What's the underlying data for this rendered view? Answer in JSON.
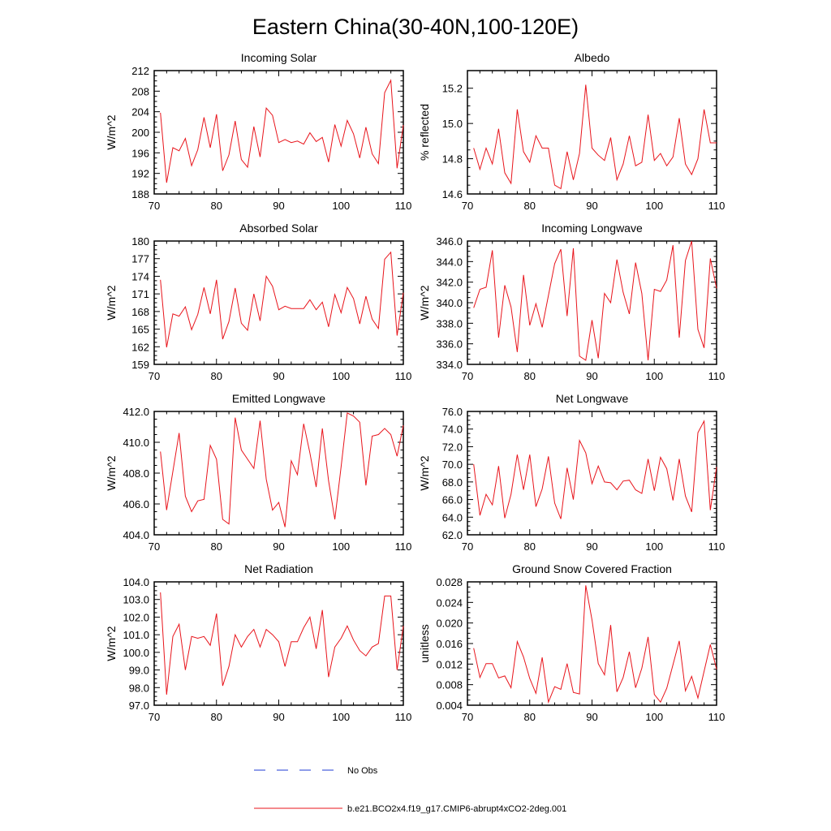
{
  "figure_title": "Eastern China(30-40N,100-120E)",
  "legend": {
    "obs_label": "No Obs",
    "model_label": "b.e21.BCO2x4.f19_g17.CMIP6-abrupt4xCO2-2deg.001",
    "obs_color": "#1f3bd6",
    "model_color": "#e8141b"
  },
  "chart_data": [
    {
      "type": "line",
      "title": "Incoming Solar",
      "ylabel": "W/m^2",
      "xlim": [
        70,
        110
      ],
      "ylim": [
        188,
        212
      ],
      "yticks": [
        "188",
        "192",
        "196",
        "200",
        "204",
        "208",
        "212"
      ],
      "xticks": [
        "70",
        "80",
        "90",
        "100",
        "110"
      ],
      "x": [
        71,
        72,
        73,
        74,
        75,
        76,
        77,
        78,
        79,
        80,
        81,
        82,
        83,
        84,
        85,
        86,
        87,
        88,
        89,
        90,
        91,
        92,
        93,
        94,
        95,
        96,
        97,
        98,
        99,
        100,
        101,
        102,
        103,
        104,
        105,
        106,
        107,
        108,
        109,
        110
      ],
      "values": [
        203.8,
        190.2,
        197.0,
        196.4,
        198.8,
        193.5,
        196.6,
        202.9,
        197.0,
        203.5,
        192.5,
        195.6,
        202.2,
        194.7,
        193.2,
        201.1,
        195.2,
        204.7,
        203.3,
        198.0,
        198.6,
        198.0,
        198.3,
        197.7,
        199.9,
        198.2,
        199.0,
        194.2,
        201.5,
        197.3,
        202.3,
        199.7,
        195.0,
        201.0,
        195.8,
        193.9,
        207.7,
        210.1,
        193.0,
        201.4
      ],
      "series_color": "#e8141b"
    },
    {
      "type": "line",
      "title": "Albedo",
      "ylabel": "% reflected",
      "xlim": [
        70,
        110
      ],
      "ylim": [
        14.6,
        15.3
      ],
      "yticks": [
        "14.6",
        "14.8",
        "15.0",
        "15.2"
      ],
      "xticks": [
        "70",
        "80",
        "90",
        "100",
        "110"
      ],
      "x": [
        71,
        72,
        73,
        74,
        75,
        76,
        77,
        78,
        79,
        80,
        81,
        82,
        83,
        84,
        85,
        86,
        87,
        88,
        89,
        90,
        91,
        92,
        93,
        94,
        95,
        96,
        97,
        98,
        99,
        100,
        101,
        102,
        103,
        104,
        105,
        106,
        107,
        108,
        109,
        110
      ],
      "values": [
        14.86,
        14.74,
        14.86,
        14.77,
        14.97,
        14.72,
        14.66,
        15.08,
        14.84,
        14.78,
        14.93,
        14.86,
        14.86,
        14.65,
        14.63,
        14.84,
        14.68,
        14.83,
        15.22,
        14.86,
        14.82,
        14.79,
        14.92,
        14.68,
        14.77,
        14.93,
        14.76,
        14.78,
        15.05,
        14.79,
        14.83,
        14.76,
        14.81,
        15.03,
        14.77,
        14.71,
        14.8,
        15.08,
        14.89,
        14.89
      ],
      "series_color": "#e8141b"
    },
    {
      "type": "line",
      "title": "Absorbed Solar",
      "ylabel": "W/m^2",
      "xlim": [
        70,
        110
      ],
      "ylim": [
        159,
        180
      ],
      "yticks": [
        "159",
        "162",
        "165",
        "168",
        "171",
        "174",
        "177",
        "180"
      ],
      "xticks": [
        "70",
        "80",
        "90",
        "100",
        "110"
      ],
      "x": [
        71,
        72,
        73,
        74,
        75,
        76,
        77,
        78,
        79,
        80,
        81,
        82,
        83,
        84,
        85,
        86,
        87,
        88,
        89,
        90,
        91,
        92,
        93,
        94,
        95,
        96,
        97,
        98,
        99,
        100,
        101,
        102,
        103,
        104,
        105,
        106,
        107,
        108,
        109,
        110
      ],
      "values": [
        173.4,
        161.9,
        167.6,
        167.2,
        168.8,
        164.9,
        167.5,
        172.1,
        167.6,
        173.4,
        163.3,
        166.3,
        172.0,
        166.0,
        164.8,
        171.0,
        166.4,
        174.0,
        172.3,
        168.3,
        168.9,
        168.5,
        168.5,
        168.5,
        170.0,
        168.3,
        169.6,
        165.4,
        170.9,
        167.8,
        172.1,
        170.2,
        165.9,
        170.6,
        166.7,
        165.1,
        176.9,
        178.1,
        163.9,
        171.2
      ],
      "series_color": "#e8141b"
    },
    {
      "type": "line",
      "title": "Incoming Longwave",
      "ylabel": "W/m^2",
      "xlim": [
        70,
        110
      ],
      "ylim": [
        334.0,
        346.0
      ],
      "yticks": [
        "334.0",
        "336.0",
        "338.0",
        "340.0",
        "342.0",
        "344.0",
        "346.0"
      ],
      "xticks": [
        "70",
        "80",
        "90",
        "100",
        "110"
      ],
      "x": [
        71,
        72,
        73,
        74,
        75,
        76,
        77,
        78,
        79,
        80,
        81,
        82,
        83,
        84,
        85,
        86,
        87,
        88,
        89,
        90,
        91,
        92,
        93,
        94,
        95,
        96,
        97,
        98,
        99,
        100,
        101,
        102,
        103,
        104,
        105,
        106,
        107,
        108,
        109,
        110
      ],
      "values": [
        339.5,
        341.3,
        341.5,
        345.1,
        336.6,
        341.7,
        339.6,
        335.2,
        342.7,
        337.8,
        339.9,
        337.6,
        340.7,
        343.8,
        345.2,
        338.7,
        345.3,
        334.8,
        334.4,
        338.3,
        334.6,
        340.9,
        340.0,
        344.2,
        341.0,
        338.9,
        343.9,
        340.9,
        334.4,
        341.3,
        341.1,
        342.2,
        345.6,
        336.6,
        344.1,
        346.0,
        337.4,
        335.6,
        344.3,
        341.4
      ],
      "series_color": "#e8141b"
    },
    {
      "type": "line",
      "title": "Emitted Longwave",
      "ylabel": "W/m^2",
      "xlim": [
        70,
        110
      ],
      "ylim": [
        404.0,
        412.0
      ],
      "yticks": [
        "404.0",
        "406.0",
        "408.0",
        "410.0",
        "412.0"
      ],
      "xticks": [
        "70",
        "80",
        "90",
        "100",
        "110"
      ],
      "x": [
        71,
        72,
        73,
        74,
        75,
        76,
        77,
        78,
        79,
        80,
        81,
        82,
        83,
        84,
        85,
        86,
        87,
        88,
        89,
        90,
        91,
        92,
        93,
        94,
        95,
        96,
        97,
        98,
        99,
        100,
        101,
        102,
        103,
        104,
        105,
        106,
        107,
        108,
        109,
        110
      ],
      "values": [
        409.4,
        405.6,
        408.1,
        410.6,
        406.5,
        405.5,
        406.2,
        406.3,
        409.8,
        408.9,
        405.0,
        404.7,
        411.6,
        409.5,
        408.9,
        408.3,
        411.4,
        407.6,
        405.6,
        406.1,
        404.5,
        408.8,
        407.9,
        411.2,
        409.3,
        407.1,
        410.9,
        407.5,
        405.0,
        408.4,
        411.9,
        411.7,
        411.3,
        407.2,
        410.4,
        410.5,
        410.9,
        410.5,
        409.1,
        411.1
      ],
      "series_color": "#e8141b"
    },
    {
      "type": "line",
      "title": "Net Longwave",
      "ylabel": "W/m^2",
      "xlim": [
        70,
        110
      ],
      "ylim": [
        62.0,
        76.0
      ],
      "yticks": [
        "62.0",
        "64.0",
        "66.0",
        "68.0",
        "70.0",
        "72.0",
        "74.0",
        "76.0"
      ],
      "xticks": [
        "70",
        "80",
        "90",
        "100",
        "110"
      ],
      "x": [
        71,
        72,
        73,
        74,
        75,
        76,
        77,
        78,
        79,
        80,
        81,
        82,
        83,
        84,
        85,
        86,
        87,
        88,
        89,
        90,
        91,
        92,
        93,
        94,
        95,
        96,
        97,
        98,
        99,
        100,
        101,
        102,
        103,
        104,
        105,
        106,
        107,
        108,
        109,
        110
      ],
      "values": [
        70.0,
        64.2,
        66.6,
        65.4,
        69.8,
        63.9,
        66.6,
        71.1,
        67.1,
        71.1,
        65.2,
        67.2,
        70.9,
        65.6,
        63.8,
        69.6,
        66.0,
        72.7,
        71.3,
        67.8,
        69.8,
        68.0,
        67.9,
        67.1,
        68.1,
        68.2,
        67.1,
        66.7,
        70.6,
        67.0,
        70.8,
        69.5,
        65.9,
        70.6,
        66.4,
        64.6,
        73.6,
        74.9,
        64.8,
        69.7
      ],
      "series_color": "#e8141b"
    },
    {
      "type": "line",
      "title": "Net Radiation",
      "ylabel": "W/m^2",
      "xlim": [
        70,
        110
      ],
      "ylim": [
        97.0,
        104.0
      ],
      "yticks": [
        "97.0",
        "98.0",
        "99.0",
        "100.0",
        "101.0",
        "102.0",
        "103.0",
        "104.0"
      ],
      "xticks": [
        "70",
        "80",
        "90",
        "100",
        "110"
      ],
      "x": [
        71,
        72,
        73,
        74,
        75,
        76,
        77,
        78,
        79,
        80,
        81,
        82,
        83,
        84,
        85,
        86,
        87,
        88,
        89,
        90,
        91,
        92,
        93,
        94,
        95,
        96,
        97,
        98,
        99,
        100,
        101,
        102,
        103,
        104,
        105,
        106,
        107,
        108,
        109,
        110
      ],
      "values": [
        103.4,
        97.6,
        100.9,
        101.6,
        99.0,
        100.9,
        100.8,
        100.9,
        100.4,
        102.2,
        98.1,
        99.2,
        101.0,
        100.3,
        100.9,
        101.3,
        100.3,
        101.3,
        101.0,
        100.6,
        99.2,
        100.6,
        100.6,
        101.4,
        102.0,
        100.2,
        102.4,
        98.6,
        100.3,
        100.8,
        101.5,
        100.7,
        100.1,
        99.8,
        100.3,
        100.5,
        103.2,
        103.2,
        99.0,
        101.5
      ],
      "series_color": "#e8141b"
    },
    {
      "type": "line",
      "title": "Ground Snow Covered Fraction",
      "ylabel": "unitless",
      "xlim": [
        70,
        110
      ],
      "ylim": [
        0.004,
        0.028
      ],
      "yticks": [
        "0.004",
        "0.008",
        "0.012",
        "0.016",
        "0.020",
        "0.024",
        "0.028"
      ],
      "xticks": [
        "70",
        "80",
        "90",
        "100",
        "110"
      ],
      "x": [
        71,
        72,
        73,
        74,
        75,
        76,
        77,
        78,
        79,
        80,
        81,
        82,
        83,
        84,
        85,
        86,
        87,
        88,
        89,
        90,
        91,
        92,
        93,
        94,
        95,
        96,
        97,
        98,
        99,
        100,
        101,
        102,
        103,
        104,
        105,
        106,
        107,
        108,
        109,
        110
      ],
      "values": [
        0.0151,
        0.0094,
        0.0121,
        0.0121,
        0.0093,
        0.0097,
        0.0074,
        0.0164,
        0.0134,
        0.0092,
        0.0063,
        0.0133,
        0.0046,
        0.0076,
        0.0071,
        0.0121,
        0.0065,
        0.0062,
        0.0273,
        0.0206,
        0.0121,
        0.0099,
        0.0196,
        0.0066,
        0.0094,
        0.0144,
        0.0074,
        0.0112,
        0.0173,
        0.0061,
        0.0046,
        0.0073,
        0.0119,
        0.0165,
        0.0068,
        0.0096,
        0.0054,
        0.0106,
        0.0158,
        0.011
      ],
      "series_color": "#e8141b"
    }
  ]
}
